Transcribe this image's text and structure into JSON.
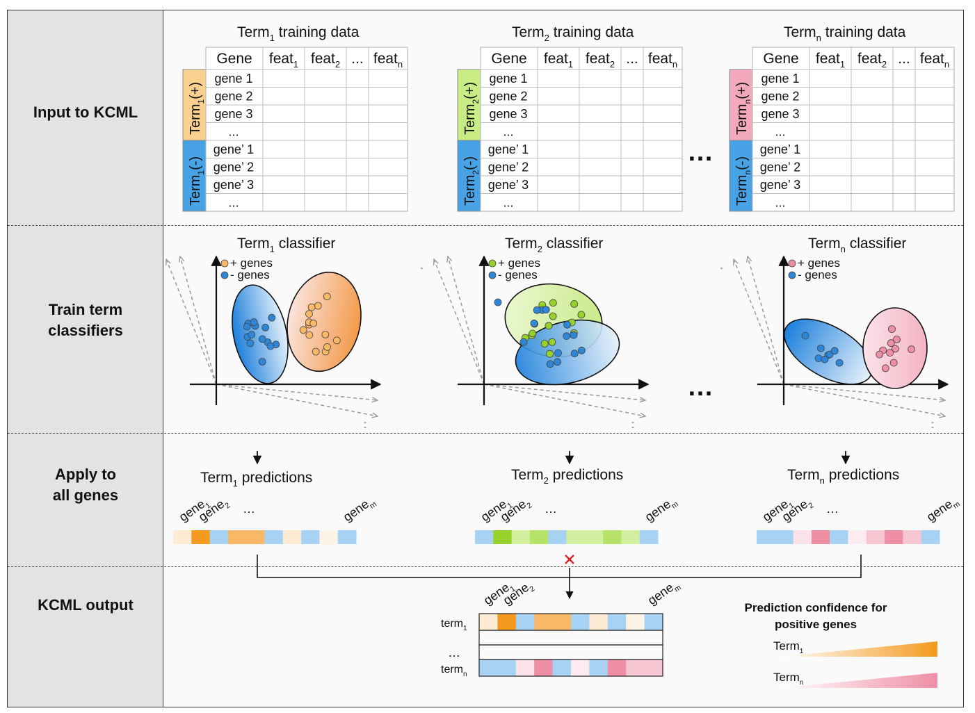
{
  "stages": [
    {
      "name": "input",
      "label_lines": [
        "Input to KCML"
      ]
    },
    {
      "name": "train",
      "label_lines": [
        "Train term",
        "classifiers"
      ]
    },
    {
      "name": "apply",
      "label_lines": [
        "Apply to",
        "all genes"
      ]
    },
    {
      "name": "output",
      "label_lines": [
        "KCML output"
      ]
    }
  ],
  "colors": {
    "orange": "#f39a1f",
    "orange_light": "#fbd7a6",
    "orange_pale": "#fdebd3",
    "orange_mid": "#f8b866",
    "green": "#98d12a",
    "green_light": "#d2ef9f",
    "green_mid": "#b6e269",
    "pink": "#ee8fa6",
    "pink_light": "#f6c6d3",
    "pink_pale": "#fbe1e8",
    "blue": "#2e86d9",
    "blue_light": "#a8d2f4",
    "plus_term1": "#fbd18f",
    "plus_term2": "#c9ec84",
    "plus_termn": "#f4a8bb",
    "minus": "#48a3e6"
  },
  "training_tables": [
    {
      "title_base": "Term",
      "title_sub": "1",
      "title_rest": " training data",
      "plus_label": [
        "Term",
        "1",
        "(+)"
      ],
      "minus_label": [
        "Term",
        "1",
        "(-)"
      ]
    },
    {
      "title_base": "Term",
      "title_sub": "2",
      "title_rest": " training data",
      "plus_label": [
        "Term",
        "2",
        "(+)"
      ],
      "minus_label": [
        "Term",
        "2",
        "(-)"
      ]
    },
    {
      "title_base": "Term",
      "title_sub": "n",
      "title_rest": " training data",
      "plus_label": [
        "Term",
        "n",
        "(+)"
      ],
      "minus_label": [
        "Term",
        "n",
        "(-)"
      ]
    }
  ],
  "table_header": {
    "gene": "Gene",
    "feat1": [
      "feat",
      "1"
    ],
    "feat2": [
      "feat",
      "2"
    ],
    "ellipsis": "...",
    "featn": [
      "feat",
      "n"
    ]
  },
  "table_rows": [
    "gene 1",
    "gene 2",
    "gene 3",
    "...",
    "gene’ 1",
    "gene’ 2",
    "gene’ 3",
    "..."
  ],
  "between_ellipsis": "…",
  "classifiers": [
    {
      "title": [
        "Term",
        "1",
        " classifier"
      ],
      "legend_plus": "+ genes",
      "legend_minus": "- genes"
    },
    {
      "title": [
        "Term",
        "2",
        " classifier"
      ],
      "legend_plus": "+ genes",
      "legend_minus": "- genes"
    },
    {
      "title": [
        "Term",
        "n",
        " classifier"
      ],
      "legend_plus": "+ genes",
      "legend_minus": "- genes"
    }
  ],
  "predictions": [
    {
      "title": [
        "Term",
        "1",
        " predictions"
      ],
      "genes": [
        [
          "gene",
          "1"
        ],
        [
          "gene",
          "2"
        ]
      ],
      "ellipsis": "…",
      "last_gene": [
        "gene",
        "m"
      ],
      "colors": [
        "#fdebd3",
        "#f39a1f",
        "#a8d2f4",
        "#f8b866",
        "#f8b866",
        "#a8d2f4",
        "#fdebd3",
        "#a8d2f4",
        "#fdf3e6",
        "#a8d2f4"
      ]
    },
    {
      "title": [
        "Term",
        "2",
        " predictions"
      ],
      "genes": [
        [
          "gene",
          "1"
        ],
        [
          "gene",
          "2"
        ]
      ],
      "ellipsis": "…",
      "last_gene": [
        "gene",
        "m"
      ],
      "colors": [
        "#a8d2f4",
        "#98d12a",
        "#d2ef9f",
        "#b6e269",
        "#a8d2f4",
        "#d2ef9f",
        "#d2ef9f",
        "#b6e269",
        "#d2ef9f",
        "#a8d2f4"
      ]
    },
    {
      "title": [
        "Term",
        "n",
        " predictions"
      ],
      "genes": [
        [
          "gene",
          "1"
        ],
        [
          "gene",
          "2"
        ]
      ],
      "ellipsis": "…",
      "last_gene": [
        "gene",
        "m"
      ],
      "colors": [
        "#a8d2f4",
        "#a8d2f4",
        "#fbe1e8",
        "#ee8fa6",
        "#a8d2f4",
        "#fdebf0",
        "#f6c6d3",
        "#ee8fa6",
        "#f6c6d3",
        "#a8d2f4"
      ]
    }
  ],
  "output": {
    "genes": [
      [
        "gene",
        "1"
      ],
      [
        "gene",
        "2"
      ]
    ],
    "last_gene": [
      "gene",
      "m"
    ],
    "rows": [
      {
        "label": [
          "term",
          "1"
        ],
        "colors": [
          "#fdebd3",
          "#f39a1f",
          "#a8d2f4",
          "#f8b866",
          "#f8b866",
          "#a8d2f4",
          "#fdebd3",
          "#a8d2f4",
          "#fdf3e6",
          "#a8d2f4"
        ]
      },
      {
        "label": [
          "",
          ""
        ],
        "colors": []
      },
      {
        "label": [
          "",
          ""
        ],
        "colors": []
      },
      {
        "label": [
          "term",
          "n"
        ],
        "colors": [
          "#a8d2f4",
          "#a8d2f4",
          "#fbe1e8",
          "#ee8fa6",
          "#a8d2f4",
          "#fdebf0",
          "#a8d2f4",
          "#ee8fa6",
          "#f6c6d3",
          "#f6c6d3"
        ]
      }
    ],
    "middle_ellipsis": "…",
    "legend_title_lines": [
      "Prediction confidence for",
      "positive genes"
    ],
    "legend_items": [
      {
        "label": [
          "Term",
          "1"
        ],
        "color": "#f39a1f"
      },
      {
        "label": [
          "Term",
          "n"
        ],
        "color": "#ee8fa6"
      }
    ]
  }
}
